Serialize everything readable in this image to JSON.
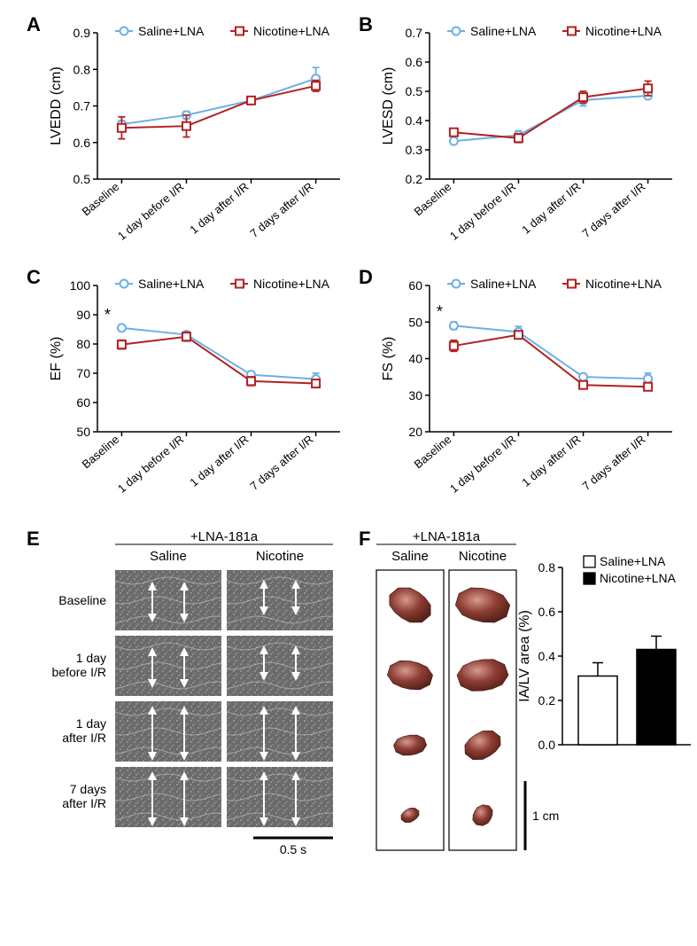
{
  "colors": {
    "saline_stroke": "#6cb0e5",
    "saline_fill": "#6cb0e5",
    "nicotine_stroke": "#b22222",
    "nicotine_fill": "#b22222",
    "axis": "#000000",
    "bar_saline_fill": "#ffffff",
    "bar_nicotine_fill": "#000000",
    "echo_bg": "#6b6b6b",
    "tissue_dark": "#7a3028",
    "tissue_light": "#c78277",
    "bg": "#ffffff"
  },
  "legend": {
    "saline": "Saline+LNA",
    "nicotine": "Nicotine+LNA"
  },
  "x_categories": [
    "Baseline",
    "1 day before I/R",
    "1 day after I/R",
    "7 days after I/R"
  ],
  "panelA": {
    "label": "A",
    "y_title": "LVEDD (cm)",
    "ylim": [
      0.5,
      0.9
    ],
    "ytick_step": 0.1,
    "decimals": 1,
    "series": {
      "saline": {
        "values": [
          0.65,
          0.675,
          0.715,
          0.775
        ],
        "errors": [
          0.01,
          0.01,
          0.01,
          0.03
        ]
      },
      "nicotine": {
        "values": [
          0.64,
          0.645,
          0.715,
          0.755
        ],
        "errors": [
          0.03,
          0.03,
          0.01,
          0.015
        ]
      }
    }
  },
  "panelB": {
    "label": "B",
    "y_title": "LVESD (cm)",
    "ylim": [
      0.2,
      0.7
    ],
    "ytick_step": 0.1,
    "decimals": 1,
    "series": {
      "saline": {
        "values": [
          0.33,
          0.35,
          0.47,
          0.485
        ],
        "errors": [
          0.01,
          0.015,
          0.02,
          0.01
        ]
      },
      "nicotine": {
        "values": [
          0.36,
          0.34,
          0.48,
          0.51
        ],
        "errors": [
          0.01,
          0.015,
          0.02,
          0.025
        ]
      }
    }
  },
  "panelC": {
    "label": "C",
    "y_title": "EF (%)",
    "ylim": [
      50,
      100
    ],
    "ytick_step": 10,
    "decimals": 0,
    "sig": [
      0
    ],
    "series": {
      "saline": {
        "values": [
          85.5,
          83.2,
          69.5,
          68
        ],
        "errors": [
          0.8,
          1.0,
          1.0,
          2.0
        ]
      },
      "nicotine": {
        "values": [
          79.8,
          82.5,
          67.3,
          66.5
        ],
        "errors": [
          1.5,
          1.5,
          1.5,
          1.0
        ]
      }
    }
  },
  "panelD": {
    "label": "D",
    "y_title": "FS (%)",
    "ylim": [
      20,
      60
    ],
    "ytick_step": 10,
    "decimals": 0,
    "sig": [
      0
    ],
    "series": {
      "saline": {
        "values": [
          49,
          47.3,
          35,
          34.5
        ],
        "errors": [
          1.0,
          1.5,
          0.8,
          1.5
        ]
      },
      "nicotine": {
        "values": [
          43.5,
          46.5,
          32.8,
          32.3
        ],
        "errors": [
          1.5,
          1.0,
          1.0,
          1.0
        ]
      }
    }
  },
  "panelE": {
    "label": "E",
    "title": "+LNA-181a",
    "columns": [
      "Saline",
      "Nicotine"
    ],
    "rows": [
      "Baseline",
      "1 day before I/R",
      "1 day after I/R",
      "7 days after I/R"
    ],
    "scale_bar": "0.5 s",
    "echo_unit_width": 120,
    "echo_unit_height": 68,
    "arrows": {
      "Baseline_Saline": [
        18,
        54
      ],
      "Baseline_Nicotine": [
        16,
        46
      ],
      "1dbI/R_Saline": [
        18,
        54
      ],
      "1dbI/R_Nicotine": [
        16,
        46
      ],
      "1daI/R_Saline": [
        10,
        62
      ],
      "1daI/R_Nicotine": [
        10,
        62
      ],
      "7daI/R_Saline": [
        10,
        62
      ],
      "7daI/R_Nicotine": [
        10,
        62
      ]
    }
  },
  "panelF": {
    "label": "F",
    "title": "+LNA-181a",
    "columns": [
      "Saline",
      "Nicotine"
    ],
    "scale_bar": "1 cm",
    "tissue_diameters": {
      "Saline": [
        52,
        50,
        36,
        22
      ],
      "Nicotine": [
        60,
        56,
        44,
        28
      ]
    },
    "bar_chart": {
      "y_title": "IA/LV area (%)",
      "ylim": [
        0.0,
        0.8
      ],
      "ytick_step": 0.2,
      "decimals": 1,
      "bars": {
        "saline": {
          "value": 0.31,
          "error": 0.06
        },
        "nicotine": {
          "value": 0.43,
          "error": 0.06
        }
      }
    }
  }
}
